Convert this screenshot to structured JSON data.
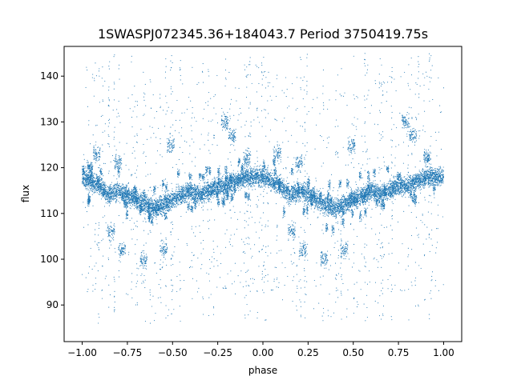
{
  "chart_data": {
    "type": "scatter",
    "title": "1SWASPJ072345.36+184043.7 Period 3750419.75s",
    "xlabel": "phase",
    "ylabel": "flux",
    "xlim": [
      -1.1,
      1.1
    ],
    "ylim": [
      82.0,
      146.5
    ],
    "xticks": [
      -1.0,
      -0.75,
      -0.5,
      -0.25,
      0.0,
      0.25,
      0.5,
      0.75,
      1.0
    ],
    "xtick_labels": [
      "−1.00",
      "−0.75",
      "−0.50",
      "−0.25",
      "0.00",
      "0.25",
      "0.50",
      "0.75",
      "1.00"
    ],
    "yticks": [
      90,
      100,
      110,
      120,
      130,
      140
    ],
    "ytick_labels": [
      "90",
      "100",
      "110",
      "120",
      "130",
      "140"
    ],
    "grid": false,
    "marker_color": "#1f77b4",
    "series": [
      {
        "x": [
          -1.0,
          -0.95,
          -0.9,
          -0.85,
          -0.8,
          -0.75,
          -0.7,
          -0.65,
          -0.6,
          -0.55,
          -0.5,
          -0.45,
          -0.4,
          -0.35,
          -0.3,
          -0.25,
          -0.2,
          -0.15,
          -0.1,
          -0.05,
          0.0,
          0.05,
          0.1,
          0.15,
          0.2,
          0.25,
          0.3,
          0.35,
          0.4,
          0.45,
          0.5,
          0.55,
          0.6,
          0.65,
          0.7,
          0.75,
          0.8,
          0.85,
          0.9,
          0.95,
          1.0
        ],
        "y": [
          118,
          117,
          116,
          114,
          115,
          114,
          113,
          112,
          111,
          112,
          113,
          114,
          115,
          114,
          115,
          116,
          116,
          117,
          118,
          118,
          118,
          117,
          116,
          114,
          115,
          114,
          113,
          112,
          111,
          112,
          113,
          114,
          115,
          114,
          115,
          116,
          116,
          117,
          118,
          118,
          118
        ]
      }
    ],
    "features": [
      {
        "x": -0.92,
        "y": 123
      },
      {
        "x": -0.8,
        "y": 121
      },
      {
        "x": -0.84,
        "y": 106
      },
      {
        "x": -0.78,
        "y": 102
      },
      {
        "x": -0.66,
        "y": 100
      },
      {
        "x": -0.55,
        "y": 102
      },
      {
        "x": -0.51,
        "y": 125
      },
      {
        "x": -0.21,
        "y": 130
      },
      {
        "x": -0.17,
        "y": 127
      },
      {
        "x": -0.09,
        "y": 122
      },
      {
        "x": 0.08,
        "y": 123
      },
      {
        "x": 0.2,
        "y": 121
      },
      {
        "x": 0.16,
        "y": 106
      },
      {
        "x": 0.22,
        "y": 102
      },
      {
        "x": 0.34,
        "y": 100
      },
      {
        "x": 0.45,
        "y": 102
      },
      {
        "x": 0.49,
        "y": 125
      },
      {
        "x": 0.79,
        "y": 130
      },
      {
        "x": 0.83,
        "y": 127
      },
      {
        "x": 0.91,
        "y": 122
      }
    ]
  }
}
